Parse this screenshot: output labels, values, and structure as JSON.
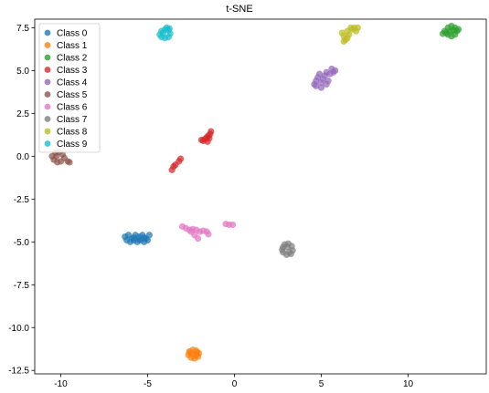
{
  "chart_data": {
    "type": "scatter",
    "title": "t-SNE",
    "xlabel": "",
    "ylabel": "",
    "xlim": [
      -11.5,
      14.5
    ],
    "ylim": [
      -12.7,
      8.0
    ],
    "xticks": [
      -10,
      -5,
      0,
      5,
      10
    ],
    "xtick_labels": [
      "-10",
      "-5",
      "0",
      "5",
      "10"
    ],
    "yticks": [
      7.5,
      5.0,
      2.5,
      0.0,
      -2.5,
      -5.0,
      -7.5,
      -10.0,
      -12.5
    ],
    "ytick_labels": [
      "7.5",
      "5.0",
      "2.5",
      "0.0",
      "-2.5",
      "-5.0",
      "-7.5",
      "-10.0",
      "-12.5"
    ],
    "grid": false,
    "legend_position": "top-left",
    "series": [
      {
        "name": "Class 0",
        "color": "#1f77b4",
        "points": [
          [
            -6.3,
            -4.7
          ],
          [
            -6.1,
            -4.6
          ],
          [
            -5.9,
            -4.8
          ],
          [
            -5.7,
            -4.6
          ],
          [
            -5.5,
            -4.7
          ],
          [
            -5.3,
            -4.6
          ],
          [
            -5.1,
            -4.8
          ],
          [
            -4.9,
            -4.6
          ],
          [
            -6.2,
            -4.9
          ],
          [
            -6.0,
            -5.0
          ],
          [
            -5.8,
            -4.9
          ],
          [
            -5.6,
            -5.0
          ],
          [
            -5.4,
            -4.9
          ],
          [
            -5.2,
            -5.0
          ],
          [
            -5.0,
            -4.9
          ],
          [
            -5.5,
            -4.85
          ],
          [
            -5.8,
            -4.75
          ],
          [
            -5.2,
            -4.75
          ]
        ]
      },
      {
        "name": "Class 1",
        "color": "#ff7f0e",
        "points": [
          [
            -2.6,
            -11.4
          ],
          [
            -2.4,
            -11.3
          ],
          [
            -2.2,
            -11.35
          ],
          [
            -2.05,
            -11.5
          ],
          [
            -2.1,
            -11.7
          ],
          [
            -2.3,
            -11.8
          ],
          [
            -2.5,
            -11.75
          ],
          [
            -2.65,
            -11.6
          ],
          [
            -2.4,
            -11.55
          ],
          [
            -2.2,
            -11.6
          ],
          [
            -2.55,
            -11.45
          ],
          [
            -2.15,
            -11.45
          ]
        ]
      },
      {
        "name": "Class 2",
        "color": "#2ca02c",
        "points": [
          [
            12.1,
            7.3
          ],
          [
            12.3,
            7.5
          ],
          [
            12.5,
            7.6
          ],
          [
            12.7,
            7.5
          ],
          [
            12.8,
            7.3
          ],
          [
            12.7,
            7.1
          ],
          [
            12.5,
            7.0
          ],
          [
            12.3,
            7.1
          ],
          [
            12.2,
            7.2
          ],
          [
            12.6,
            7.35
          ],
          [
            12.4,
            7.3
          ],
          [
            12.9,
            7.4
          ],
          [
            12.0,
            7.15
          ]
        ]
      },
      {
        "name": "Class 3",
        "color": "#d62728",
        "points": [
          [
            -1.8,
            0.9
          ],
          [
            -1.7,
            1.0
          ],
          [
            -1.6,
            1.1
          ],
          [
            -1.5,
            1.2
          ],
          [
            -1.4,
            1.3
          ],
          [
            -1.35,
            1.45
          ],
          [
            -1.9,
            0.95
          ],
          [
            -1.55,
            0.85
          ],
          [
            -1.45,
            1.05
          ],
          [
            -3.6,
            -0.8
          ],
          [
            -3.5,
            -0.6
          ],
          [
            -3.4,
            -0.5
          ],
          [
            -3.2,
            -0.3
          ],
          [
            -3.1,
            -0.15
          ]
        ]
      },
      {
        "name": "Class 4",
        "color": "#9467bd",
        "points": [
          [
            4.6,
            4.2
          ],
          [
            4.7,
            4.4
          ],
          [
            4.8,
            4.6
          ],
          [
            5.0,
            4.3
          ],
          [
            5.1,
            4.5
          ],
          [
            5.2,
            4.7
          ],
          [
            5.3,
            4.9
          ],
          [
            5.5,
            4.8
          ],
          [
            5.7,
            4.9
          ],
          [
            5.6,
            5.1
          ],
          [
            5.8,
            5.0
          ],
          [
            4.9,
            4.8
          ],
          [
            5.4,
            4.4
          ],
          [
            4.7,
            4.1
          ],
          [
            5.0,
            4.0
          ],
          [
            5.3,
            4.2
          ]
        ]
      },
      {
        "name": "Class 5",
        "color": "#8c564b",
        "points": [
          [
            -10.5,
            0.0
          ],
          [
            -10.3,
            0.2
          ],
          [
            -10.1,
            0.25
          ],
          [
            -9.9,
            0.1
          ],
          [
            -9.8,
            -0.1
          ],
          [
            -10.0,
            -0.3
          ],
          [
            -10.2,
            -0.35
          ],
          [
            -10.4,
            -0.2
          ],
          [
            -9.6,
            -0.3
          ],
          [
            -9.5,
            -0.35
          ],
          [
            -10.25,
            0.0
          ]
        ]
      },
      {
        "name": "Class 6",
        "color": "#e377c2",
        "points": [
          [
            -3.0,
            -4.1
          ],
          [
            -2.8,
            -4.2
          ],
          [
            -2.6,
            -4.3
          ],
          [
            -2.4,
            -4.25
          ],
          [
            -2.2,
            -4.3
          ],
          [
            -2.0,
            -4.4
          ],
          [
            -1.8,
            -4.35
          ],
          [
            -1.6,
            -4.4
          ],
          [
            -1.5,
            -4.55
          ],
          [
            -2.3,
            -4.6
          ],
          [
            -2.1,
            -4.8
          ],
          [
            -2.5,
            -4.4
          ],
          [
            -0.5,
            -3.95
          ],
          [
            -0.3,
            -4.0
          ],
          [
            -0.1,
            -4.0
          ]
        ]
      },
      {
        "name": "Class 7",
        "color": "#7f7f7f",
        "points": [
          [
            2.8,
            -5.3
          ],
          [
            2.9,
            -5.15
          ],
          [
            3.1,
            -5.1
          ],
          [
            3.3,
            -5.25
          ],
          [
            3.35,
            -5.5
          ],
          [
            3.25,
            -5.7
          ],
          [
            3.0,
            -5.75
          ],
          [
            2.8,
            -5.6
          ],
          [
            2.75,
            -5.45
          ],
          [
            3.15,
            -5.6
          ],
          [
            3.05,
            -5.3
          ]
        ]
      },
      {
        "name": "Class 8",
        "color": "#bcbd22",
        "points": [
          [
            6.2,
            7.2
          ],
          [
            6.3,
            7.0
          ],
          [
            6.4,
            6.8
          ],
          [
            6.5,
            7.3
          ],
          [
            6.6,
            7.1
          ],
          [
            6.8,
            7.4
          ],
          [
            6.9,
            7.5
          ],
          [
            7.0,
            7.3
          ],
          [
            7.1,
            7.5
          ],
          [
            6.3,
            6.7
          ],
          [
            6.7,
            7.5
          ],
          [
            6.5,
            6.9
          ]
        ]
      },
      {
        "name": "Class 9",
        "color": "#17becf",
        "points": [
          [
            -4.3,
            7.1
          ],
          [
            -4.2,
            7.3
          ],
          [
            -4.0,
            7.4
          ],
          [
            -3.8,
            7.35
          ],
          [
            -3.7,
            7.15
          ],
          [
            -3.8,
            6.95
          ],
          [
            -4.0,
            6.9
          ],
          [
            -4.2,
            6.95
          ],
          [
            -3.9,
            7.5
          ],
          [
            -4.1,
            7.2
          ],
          [
            -3.75,
            7.45
          ]
        ]
      }
    ]
  }
}
